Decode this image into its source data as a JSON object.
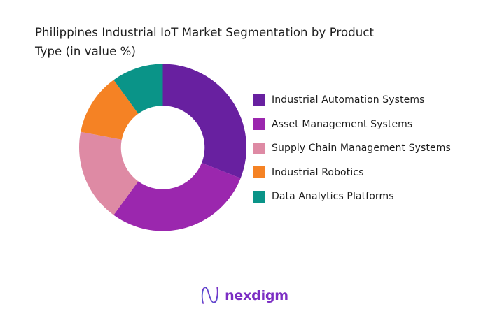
{
  "title": {
    "line1": "Philippines Industrial IoT Market Segmentation by Product",
    "line2": "Type (in value %)"
  },
  "chart_data": {
    "type": "pie",
    "subtype": "donut",
    "title": "Philippines Industrial IoT Market Segmentation by Product Type (in value %)",
    "hole_ratio": 0.5,
    "start_angle_deg": 0,
    "direction": "clockwise",
    "units": "percent of value",
    "legend_position": "right",
    "labels": [
      "Industrial Automation Systems",
      "Asset Management Systems",
      "Supply Chain Management Systems",
      "Industrial Robotics",
      "Data Analytics Platforms"
    ],
    "values": [
      31,
      29,
      18,
      12,
      10
    ],
    "colors": [
      "#6820a0",
      "#9b27ae",
      "#de8aa4",
      "#f58224",
      "#0a9488"
    ]
  },
  "footer": {
    "logo_text": "nexdigm",
    "logo_color": "#7c2ec4",
    "logo_mark_colors": [
      "#7c2ec4",
      "#4a5fd5"
    ]
  }
}
